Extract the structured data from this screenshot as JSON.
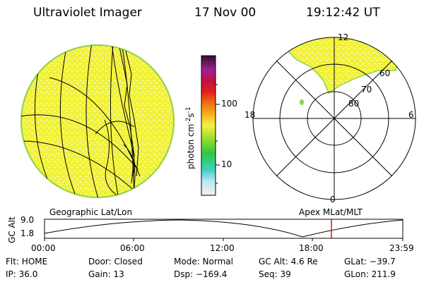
{
  "header": {
    "instrument": "Ultraviolet Imager",
    "date": "17 Nov 00",
    "time": "19:12:42 UT"
  },
  "colorbar": {
    "unit_label": "photon cm",
    "unit_sup1": "-2",
    "unit_mid": "s",
    "unit_sup2": "-1",
    "ticks": [
      "100",
      "10"
    ]
  },
  "polar_plot": {
    "mlt_labels": {
      "top": "12",
      "left": "18",
      "right": "6",
      "bottom": "0"
    },
    "lat_labels": [
      "60",
      "70",
      "80"
    ]
  },
  "panel_labels": {
    "left": "Geographic Lat/Lon",
    "right": "Apex MLat/MLT"
  },
  "altitude_plot": {
    "ylabel": "GC Alt",
    "yticks": [
      "9.0",
      "1.8"
    ],
    "xticks": [
      "00:00",
      "06:00",
      "12:00",
      "18:00",
      "23:59"
    ],
    "marker_time": "19:12"
  },
  "info": {
    "flt": "Flt: HOME",
    "ip": "IP: 36.0",
    "door": "Door: Closed",
    "gain": "Gain: 13",
    "mode": "Mode: Normal",
    "dsp": "Dsp: −169.4",
    "gc_alt": "GC Alt: 4.6 Re",
    "seq": "Seq: 39",
    "glat": "GLat: −39.7",
    "glon": "GLon: 211.9"
  },
  "colors": {
    "disk_fill": "#f2f23a",
    "disk_edge": "#8fd14a",
    "marker": "#e01010"
  }
}
